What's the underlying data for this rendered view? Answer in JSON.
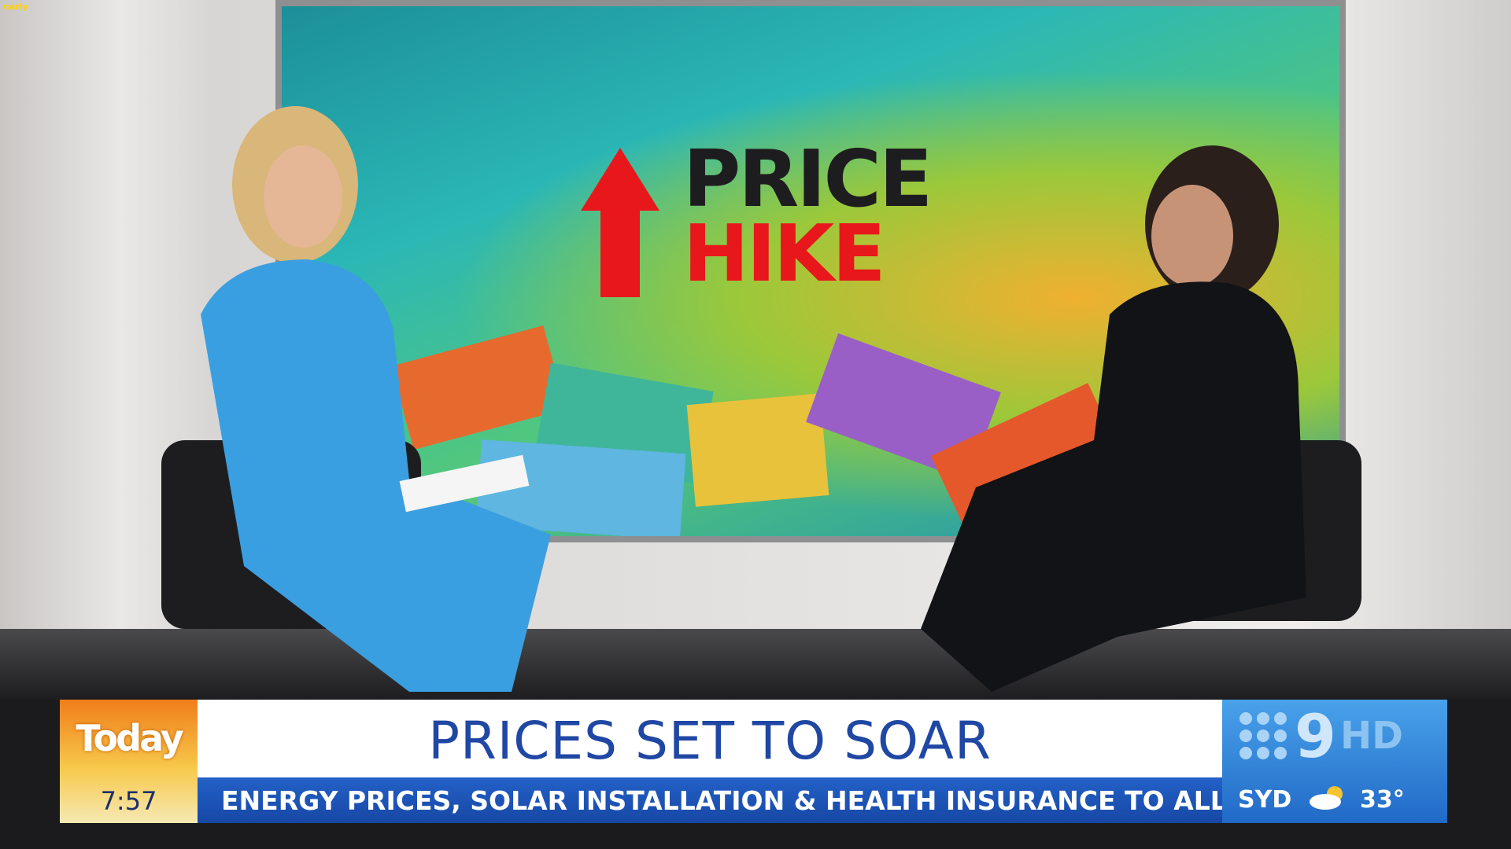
{
  "watermark": "narly",
  "screen": {
    "line1": "PRICE",
    "line2": "HIKE"
  },
  "lower_third": {
    "logo": "Today",
    "time": "7:57",
    "headline": "PRICES SET TO SOAR",
    "ticker": "ENERGY PRICES, SOLAR INSTALLATION & HEALTH INSURANCE TO ALL RISE",
    "network": "9",
    "quality": "HD",
    "city": "SYD",
    "temperature": "33°"
  }
}
